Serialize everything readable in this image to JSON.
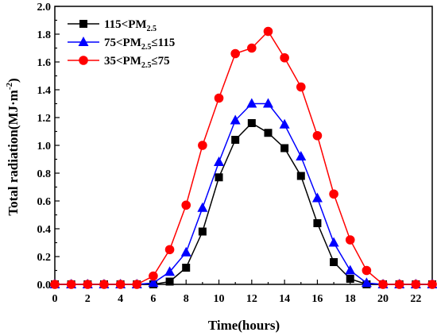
{
  "chart_data": {
    "type": "line",
    "xlabel": "Time(hours)",
    "ylabel_main": "Total radiation(MJ·m",
    "ylabel_sup": "-2",
    "ylabel_close": ")",
    "xlim": [
      0,
      23
    ],
    "ylim": [
      0.0,
      2.0
    ],
    "x_ticks": [
      0,
      2,
      4,
      6,
      8,
      10,
      12,
      14,
      16,
      18,
      20,
      22
    ],
    "x_tick_labels": [
      "0",
      "2",
      "4",
      "6",
      "8",
      "10",
      "12",
      "14",
      "16",
      "18",
      "20",
      "22"
    ],
    "y_ticks": [
      0.0,
      0.2,
      0.4,
      0.6,
      0.8,
      1.0,
      1.2,
      1.4,
      1.6,
      1.8,
      2.0
    ],
    "y_tick_labels": [
      "0.0",
      "0.2",
      "0.4",
      "0.6",
      "0.8",
      "1.0",
      "1.2",
      "1.4",
      "1.6",
      "1.8",
      "2.0"
    ],
    "grid": false,
    "legend_position": "top-left",
    "x": [
      0,
      1,
      2,
      3,
      4,
      5,
      6,
      7,
      8,
      9,
      10,
      11,
      12,
      13,
      14,
      15,
      16,
      17,
      18,
      19,
      20,
      21,
      22,
      23
    ],
    "series": [
      {
        "name_parts": [
          "115<PM",
          "2.5",
          ""
        ],
        "color": "#000000",
        "marker": "square",
        "values": [
          0,
          0,
          0,
          0,
          0,
          0,
          0,
          0.02,
          0.12,
          0.38,
          0.77,
          1.04,
          1.16,
          1.09,
          0.98,
          0.78,
          0.44,
          0.16,
          0.04,
          0,
          0,
          0,
          0,
          0
        ]
      },
      {
        "name_parts": [
          "75<PM",
          "2.5",
          "≤115"
        ],
        "color": "#0000ff",
        "marker": "triangle",
        "values": [
          0,
          0,
          0,
          0,
          0,
          0,
          0.01,
          0.09,
          0.23,
          0.55,
          0.88,
          1.18,
          1.3,
          1.3,
          1.15,
          0.92,
          0.62,
          0.3,
          0.1,
          0.01,
          0,
          0,
          0,
          0
        ]
      },
      {
        "name_parts": [
          "35<PM",
          "2.5",
          "≤75"
        ],
        "color": "#ff0000",
        "marker": "circle",
        "values": [
          0,
          0,
          0,
          0,
          0,
          0,
          0.06,
          0.25,
          0.57,
          1.0,
          1.34,
          1.66,
          1.7,
          1.82,
          1.63,
          1.42,
          1.07,
          0.65,
          0.32,
          0.1,
          0,
          0,
          0,
          0
        ]
      }
    ]
  }
}
